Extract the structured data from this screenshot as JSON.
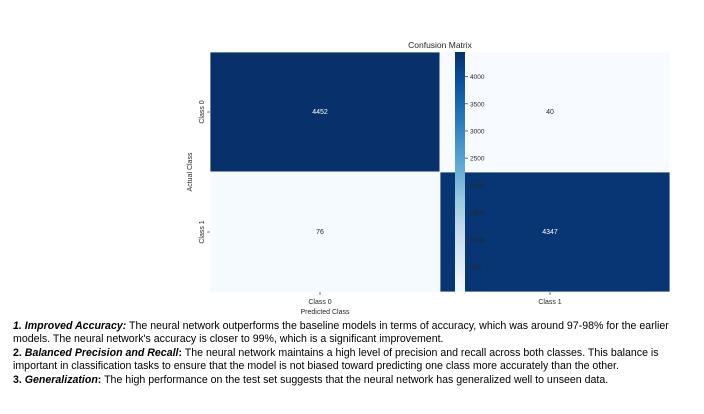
{
  "chart_data": {
    "type": "heatmap",
    "title": "Confusion Matrix",
    "xlabel": "Predicted Class",
    "ylabel": "Actual Class",
    "x_categories": [
      "Class 0",
      "Class 1"
    ],
    "y_categories": [
      "Class 0",
      "Class 1"
    ],
    "values": [
      [
        4452,
        40
      ],
      [
        76,
        4347
      ]
    ],
    "colorbar": {
      "range": [
        40,
        4452
      ],
      "ticks": [
        500,
        1000,
        1500,
        2000,
        2500,
        3000,
        3500,
        4000
      ],
      "colormap": "Blues",
      "low_color": "#f7fbff",
      "high_color": "#08306b"
    }
  },
  "notes": [
    {
      "number": "1.",
      "title": "Improved Accuracy:",
      "text": " The neural network outperforms the baseline models in terms of accuracy, which was around 97-98% for the earlier models. The neural network's accuracy is closer to 99%, which is a significant improvement."
    },
    {
      "number": "2.",
      "title": "Balanced Precision and Recall",
      "title_suffix": ":",
      "text": " The neural network maintains a high level of precision and recall across both classes. This balance is important in classification tasks to ensure that the model is not biased toward predicting one class more accurately than the other."
    },
    {
      "number": "3.",
      "title": "Generalization",
      "title_suffix": ":",
      "text": " The high performance on the test set suggests that the neural network has generalized well to unseen data."
    }
  ]
}
